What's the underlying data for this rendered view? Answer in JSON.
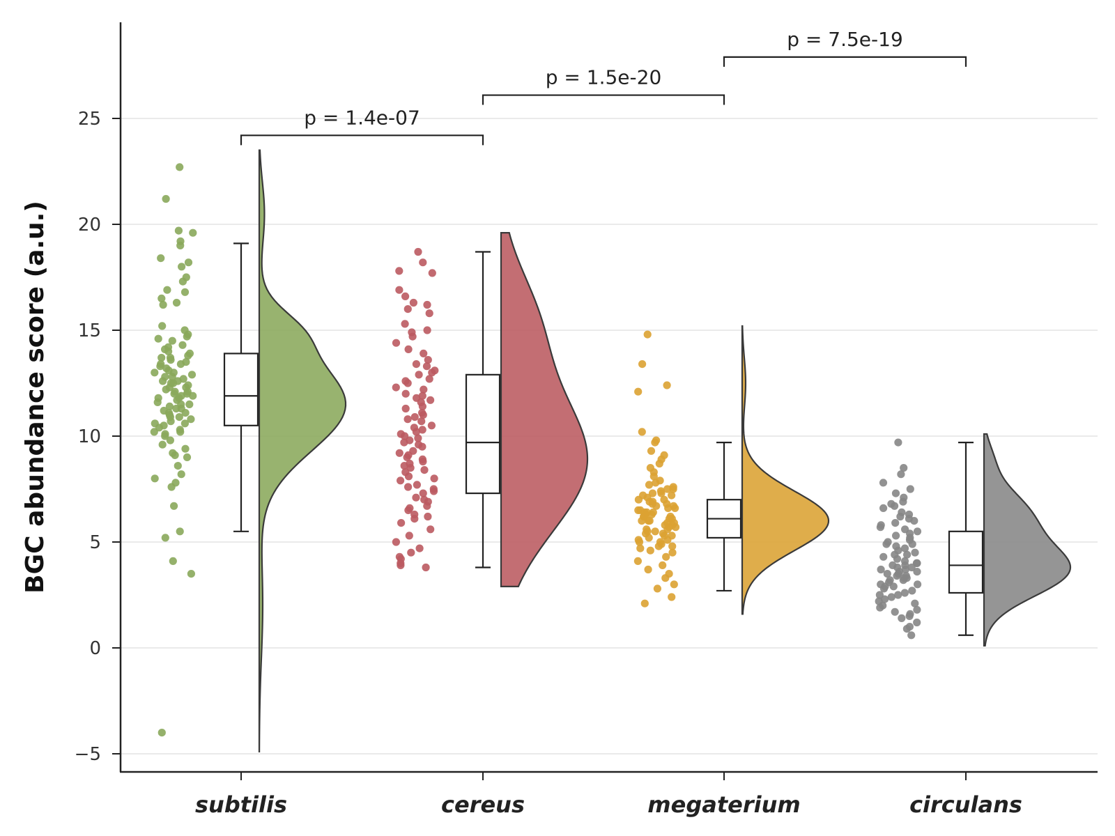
{
  "chart_data": {
    "type": "raincloud",
    "ylabel": "BGC abundance score (a.u.)",
    "ylim": [
      -5.9,
      29.5
    ],
    "yticks": [
      -5,
      0,
      5,
      10,
      15,
      20,
      25
    ],
    "ytick_labels": [
      "−5",
      "0",
      "5",
      "10",
      "15",
      "20",
      "25"
    ],
    "grid": "horizontal",
    "categories": [
      "subtilis",
      "cereus",
      "megaterium",
      "circulans"
    ],
    "groups": [
      {
        "name": "subtilis",
        "color": "#8aa85b",
        "box": {
          "q1": 10.5,
          "median": 11.9,
          "q3": 13.9,
          "whisker_low": 5.5,
          "whisker_high": 19.1
        },
        "violin_range": [
          -4.9,
          23.5
        ],
        "violin_modes": [
          {
            "y": 11.5,
            "w": 1.0,
            "sd": 2.2
          },
          {
            "y": 15.0,
            "w": 0.25,
            "sd": 1.0
          },
          {
            "y": 20.5,
            "w": 0.06,
            "sd": 1.5
          },
          {
            "y": 2.0,
            "w": 0.04,
            "sd": 2.5
          }
        ],
        "points": [
          22.7,
          21.2,
          19.7,
          19.6,
          19.2,
          19.0,
          18.4,
          18.2,
          18.0,
          17.5,
          17.3,
          16.9,
          16.8,
          16.5,
          16.3,
          16.2,
          15.2,
          15.0,
          14.8,
          14.7,
          14.6,
          14.5,
          14.3,
          14.2,
          14.1,
          14.0,
          13.9,
          13.8,
          13.7,
          13.6,
          13.5,
          13.4,
          13.3,
          13.2,
          13.1,
          13.0,
          12.9,
          12.8,
          12.7,
          12.6,
          12.5,
          12.4,
          12.3,
          12.2,
          12.1,
          12.0,
          11.9,
          11.8,
          11.7,
          11.6,
          11.5,
          11.4,
          11.3,
          11.2,
          11.1,
          11.0,
          10.9,
          10.8,
          10.7,
          10.6,
          10.5,
          10.4,
          10.3,
          10.2,
          10.1,
          10.0,
          9.8,
          9.6,
          9.4,
          9.2,
          9.1,
          9.0,
          8.6,
          8.2,
          8.0,
          7.8,
          7.6,
          6.7,
          5.5,
          5.2,
          4.1,
          3.5,
          -4.0,
          12.0,
          11.5,
          12.6,
          13.0,
          11.8,
          10.9,
          12.3,
          11.1,
          13.4,
          12.8,
          10.6,
          11.9,
          12.5,
          13.7,
          11.3,
          10.2,
          12.1
        ]
      },
      {
        "name": "cereus",
        "color": "#bb5a60",
        "box": {
          "q1": 7.3,
          "median": 9.7,
          "q3": 12.9,
          "whisker_low": 3.8,
          "whisker_high": 18.7
        },
        "violin_range": [
          2.9,
          19.6
        ],
        "violin_modes": [
          {
            "y": 8.8,
            "w": 1.0,
            "sd": 3.3
          },
          {
            "y": 15.5,
            "w": 0.35,
            "sd": 2.5
          }
        ],
        "points": [
          18.7,
          18.2,
          17.8,
          17.7,
          16.9,
          16.6,
          16.3,
          16.2,
          16.0,
          15.8,
          15.3,
          15.0,
          14.9,
          14.7,
          14.4,
          14.1,
          13.9,
          13.6,
          13.3,
          13.1,
          12.9,
          12.7,
          12.5,
          12.3,
          12.0,
          11.8,
          11.6,
          11.4,
          11.1,
          10.9,
          10.7,
          10.5,
          10.3,
          10.1,
          9.9,
          9.7,
          9.5,
          9.3,
          9.1,
          8.9,
          8.7,
          8.5,
          8.3,
          8.1,
          7.9,
          7.7,
          7.5,
          7.3,
          7.1,
          6.9,
          6.7,
          6.5,
          6.3,
          6.1,
          5.9,
          5.6,
          5.3,
          5.0,
          4.7,
          4.5,
          4.3,
          4.2,
          4.0,
          3.9,
          3.8,
          12.2,
          11.0,
          9.8,
          8.6,
          10.4,
          13.0,
          7.6,
          9.2,
          11.7,
          6.6,
          8.0,
          10.0,
          12.6,
          9.6,
          7.4,
          11.3,
          8.4,
          10.8,
          6.2,
          9.0,
          13.4,
          7.0,
          10.2,
          8.8,
          11.9
        ]
      },
      {
        "name": "megaterium",
        "color": "#dba232",
        "box": {
          "q1": 5.2,
          "median": 6.1,
          "q3": 7.0,
          "whisker_low": 2.7,
          "whisker_high": 9.7
        },
        "violin_range": [
          1.6,
          15.2
        ],
        "violin_modes": [
          {
            "y": 6.0,
            "w": 1.0,
            "sd": 1.4
          },
          {
            "y": 12.5,
            "w": 0.04,
            "sd": 1.2
          }
        ],
        "points": [
          14.8,
          13.4,
          12.4,
          12.1,
          10.2,
          9.8,
          9.7,
          9.3,
          9.1,
          8.9,
          8.7,
          8.5,
          8.3,
          8.1,
          7.9,
          7.7,
          7.6,
          7.5,
          7.4,
          7.3,
          7.2,
          7.1,
          7.0,
          6.9,
          6.8,
          6.7,
          6.6,
          6.5,
          6.4,
          6.3,
          6.2,
          6.1,
          6.0,
          5.9,
          5.8,
          5.7,
          5.6,
          5.5,
          5.4,
          5.3,
          5.2,
          5.1,
          5.0,
          4.9,
          4.8,
          4.7,
          4.5,
          4.3,
          4.1,
          3.9,
          3.7,
          3.5,
          3.3,
          3.0,
          2.8,
          2.4,
          2.1,
          6.0,
          6.3,
          5.8,
          6.6,
          5.5,
          6.9,
          6.2,
          5.9,
          7.0,
          5.3,
          6.4,
          6.1,
          5.7,
          6.8,
          5.4,
          7.2,
          6.5,
          5.6,
          4.6,
          7.8,
          6.7,
          5.0,
          6.0,
          7.3,
          4.8,
          6.2,
          5.1,
          6.4,
          7.5
        ]
      },
      {
        "name": "circulans",
        "color": "#868686",
        "box": {
          "q1": 2.6,
          "median": 3.9,
          "q3": 5.5,
          "whisker_low": 0.6,
          "whisker_high": 9.7
        },
        "violin_range": [
          0.1,
          10.1
        ],
        "violin_modes": [
          {
            "y": 3.6,
            "w": 1.0,
            "sd": 1.2
          },
          {
            "y": 6.2,
            "w": 0.55,
            "sd": 1.3
          },
          {
            "y": 9.0,
            "w": 0.08,
            "sd": 0.8
          }
        ],
        "points": [
          9.7,
          8.5,
          8.2,
          7.8,
          7.5,
          7.3,
          7.1,
          6.9,
          6.8,
          6.6,
          6.4,
          6.2,
          6.1,
          5.9,
          5.7,
          5.5,
          5.4,
          5.2,
          5.0,
          4.9,
          4.7,
          4.5,
          4.4,
          4.2,
          4.0,
          3.9,
          3.8,
          3.7,
          3.6,
          3.5,
          3.4,
          3.3,
          3.2,
          3.1,
          3.0,
          2.9,
          2.7,
          2.5,
          2.4,
          2.2,
          2.0,
          1.8,
          1.6,
          1.4,
          1.2,
          1.0,
          0.9,
          0.6,
          3.6,
          3.3,
          4.1,
          2.8,
          5.1,
          3.9,
          2.6,
          4.6,
          6.0,
          3.4,
          1.9,
          5.6,
          4.3,
          2.3,
          3.0,
          6.7,
          4.8,
          3.7,
          2.1,
          5.3,
          3.2,
          4.0,
          1.5,
          6.3,
          2.9,
          3.5,
          4.4,
          5.8,
          2.5,
          3.8,
          1.7,
          4.9
        ]
      }
    ],
    "comparisons": [
      {
        "from": "subtilis",
        "to": "cereus",
        "label": "p = 1.4e-07",
        "y": 24.2
      },
      {
        "from": "cereus",
        "to": "megaterium",
        "label": "p = 1.5e-20",
        "y": 26.1
      },
      {
        "from": "megaterium",
        "to": "circulans",
        "label": "p = 7.5e-19",
        "y": 27.9
      }
    ]
  }
}
